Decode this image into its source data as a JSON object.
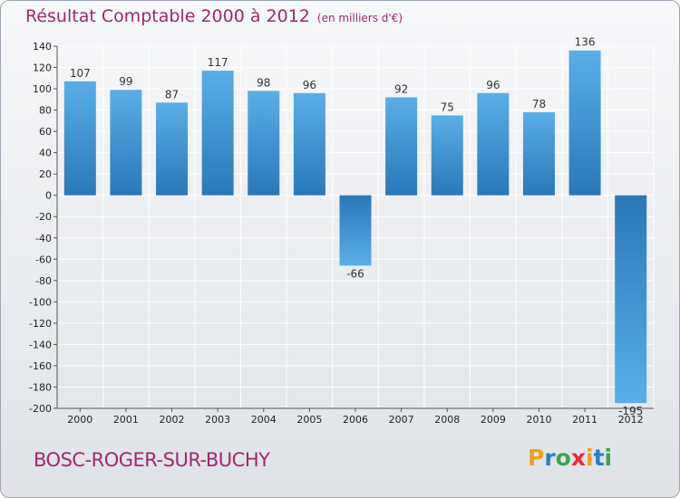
{
  "header": {
    "title": "Résultat Comptable 2000 à 2012",
    "unit": "(en milliers d'€)"
  },
  "commune": "BOSC-ROGER-SUR-BUCHY",
  "logo": {
    "letters": [
      {
        "ch": "P",
        "color": "#f0a020"
      },
      {
        "ch": "r",
        "color": "#2a7fc4"
      },
      {
        "ch": "o",
        "color": "#3aa64a"
      },
      {
        "ch": "x",
        "color": "#e03030"
      },
      {
        "ch": "i",
        "color": "#f0a020"
      },
      {
        "ch": "t",
        "color": "#2a7fc4"
      },
      {
        "ch": "i",
        "color": "#3aa64a"
      }
    ]
  },
  "chart_data": {
    "type": "bar",
    "categories": [
      "2000",
      "2001",
      "2002",
      "2003",
      "2004",
      "2005",
      "2006",
      "2007",
      "2008",
      "2009",
      "2010",
      "2011",
      "2012"
    ],
    "values": [
      107,
      99,
      87,
      117,
      98,
      96,
      -66,
      92,
      75,
      96,
      78,
      136,
      -195
    ],
    "data_labels": [
      "107",
      "99",
      "87",
      "117",
      "98",
      "96",
      "-66",
      "92",
      "75",
      "96",
      "78",
      "136",
      "-195"
    ],
    "ylim": [
      -200,
      140
    ],
    "yticks": [
      140,
      120,
      100,
      80,
      60,
      40,
      20,
      0,
      -20,
      -40,
      -60,
      -80,
      -100,
      -120,
      -140,
      -160,
      -180,
      -200
    ],
    "grid": true,
    "colors": {
      "bar_light": "#5aaee6",
      "bar_dark": "#2a78b8",
      "grid": "#ffffff",
      "axis": "#555555"
    }
  }
}
